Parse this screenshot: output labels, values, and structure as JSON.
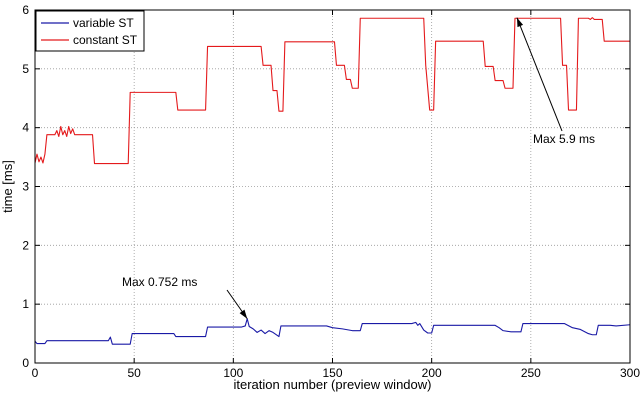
{
  "chart_data": {
    "type": "line",
    "xlabel": "iteration number (preview window)",
    "ylabel": "time [ms]",
    "xlim": [
      0,
      300
    ],
    "ylim": [
      0,
      6
    ],
    "xticks": [
      0,
      50,
      100,
      150,
      200,
      250,
      300
    ],
    "yticks": [
      0,
      1,
      2,
      3,
      4,
      5,
      6
    ],
    "grid": true,
    "legend_position": "top-left",
    "series": [
      {
        "name": "variable ST",
        "color": "#1a1aa6",
        "points": [
          [
            0,
            0.37
          ],
          [
            1,
            0.33
          ],
          [
            5,
            0.33
          ],
          [
            6,
            0.38
          ],
          [
            37,
            0.38
          ],
          [
            38,
            0.44
          ],
          [
            39,
            0.32
          ],
          [
            48,
            0.32
          ],
          [
            49,
            0.5
          ],
          [
            70,
            0.5
          ],
          [
            71,
            0.45
          ],
          [
            86,
            0.45
          ],
          [
            87,
            0.61
          ],
          [
            104,
            0.61
          ],
          [
            106,
            0.63
          ],
          [
            107,
            0.752
          ],
          [
            108,
            0.62
          ],
          [
            110,
            0.58
          ],
          [
            112,
            0.52
          ],
          [
            114,
            0.56
          ],
          [
            116,
            0.5
          ],
          [
            118,
            0.55
          ],
          [
            120,
            0.52
          ],
          [
            123,
            0.45
          ],
          [
            124,
            0.63
          ],
          [
            147,
            0.63
          ],
          [
            150,
            0.6
          ],
          [
            155,
            0.58
          ],
          [
            160,
            0.55
          ],
          [
            164,
            0.55
          ],
          [
            165,
            0.67
          ],
          [
            190,
            0.67
          ],
          [
            192,
            0.69
          ],
          [
            193,
            0.64
          ],
          [
            194,
            0.67
          ],
          [
            196,
            0.56
          ],
          [
            198,
            0.51
          ],
          [
            200,
            0.51
          ],
          [
            201,
            0.64
          ],
          [
            232,
            0.64
          ],
          [
            234,
            0.6
          ],
          [
            236,
            0.55
          ],
          [
            240,
            0.53
          ],
          [
            245,
            0.53
          ],
          [
            246,
            0.67
          ],
          [
            267,
            0.67
          ],
          [
            271,
            0.6
          ],
          [
            275,
            0.57
          ],
          [
            279,
            0.5
          ],
          [
            281,
            0.48
          ],
          [
            283,
            0.48
          ],
          [
            284,
            0.64
          ],
          [
            290,
            0.64
          ],
          [
            293,
            0.63
          ],
          [
            300,
            0.65
          ]
        ]
      },
      {
        "name": "constant ST",
        "color": "#e41a1c",
        "points": [
          [
            0,
            3.4
          ],
          [
            1,
            3.55
          ],
          [
            2,
            3.42
          ],
          [
            3,
            3.5
          ],
          [
            4,
            3.4
          ],
          [
            5,
            3.55
          ],
          [
            6,
            3.88
          ],
          [
            10,
            3.88
          ],
          [
            11,
            3.95
          ],
          [
            12,
            3.85
          ],
          [
            13,
            4.02
          ],
          [
            14,
            3.88
          ],
          [
            15,
            3.95
          ],
          [
            16,
            3.85
          ],
          [
            17,
            4.02
          ],
          [
            18,
            3.9
          ],
          [
            19,
            3.98
          ],
          [
            20,
            3.88
          ],
          [
            29,
            3.88
          ],
          [
            30,
            3.39
          ],
          [
            47,
            3.39
          ],
          [
            48,
            4.6
          ],
          [
            71,
            4.6
          ],
          [
            72,
            4.3
          ],
          [
            86,
            4.3
          ],
          [
            87,
            5.38
          ],
          [
            114,
            5.38
          ],
          [
            115,
            5.06
          ],
          [
            119,
            5.06
          ],
          [
            120,
            4.63
          ],
          [
            122,
            4.63
          ],
          [
            123,
            4.28
          ],
          [
            125,
            4.28
          ],
          [
            126,
            5.46
          ],
          [
            151,
            5.46
          ],
          [
            152,
            5.06
          ],
          [
            156,
            5.06
          ],
          [
            157,
            4.82
          ],
          [
            159,
            4.82
          ],
          [
            160,
            4.67
          ],
          [
            163,
            4.67
          ],
          [
            164,
            5.86
          ],
          [
            196,
            5.86
          ],
          [
            197,
            5.06
          ],
          [
            199,
            4.3
          ],
          [
            201,
            4.3
          ],
          [
            202,
            5.47
          ],
          [
            226,
            5.47
          ],
          [
            227,
            5.04
          ],
          [
            231,
            5.04
          ],
          [
            232,
            4.8
          ],
          [
            236,
            4.8
          ],
          [
            237,
            4.67
          ],
          [
            241,
            4.67
          ],
          [
            242,
            5.86
          ],
          [
            265,
            5.86
          ],
          [
            266,
            5.06
          ],
          [
            268,
            5.06
          ],
          [
            269,
            4.3
          ],
          [
            273,
            4.3
          ],
          [
            274,
            5.86
          ],
          [
            279,
            5.86
          ],
          [
            280,
            5.84
          ],
          [
            281,
            5.87
          ],
          [
            282,
            5.84
          ],
          [
            286,
            5.84
          ],
          [
            287,
            5.47
          ],
          [
            300,
            5.47
          ]
        ]
      }
    ],
    "annotations": [
      {
        "text": "Max 5.9 ms",
        "target": [
          243,
          5.87
        ]
      },
      {
        "text": "Max 0.752 ms",
        "target": [
          107,
          0.752
        ]
      }
    ]
  }
}
